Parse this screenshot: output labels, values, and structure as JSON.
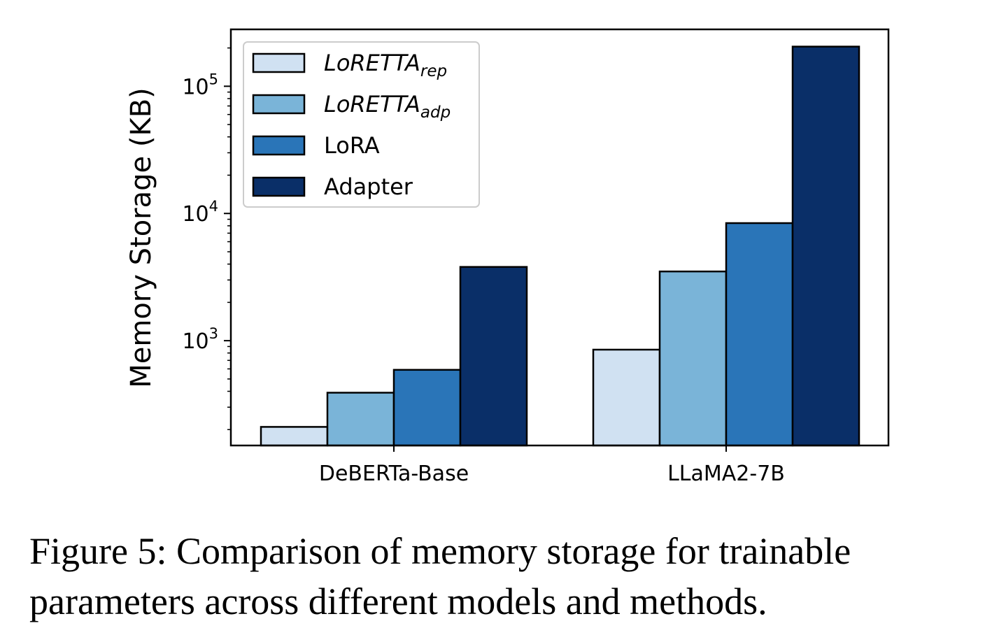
{
  "chart_data": {
    "type": "bar",
    "ylabel": "Memory Storage (KB)",
    "yscale": "log",
    "ylim": [
      150,
      280000
    ],
    "yticks": [
      {
        "value": 1000,
        "base": "10",
        "exp": "3"
      },
      {
        "value": 10000,
        "base": "10",
        "exp": "4"
      },
      {
        "value": 100000,
        "base": "10",
        "exp": "5"
      }
    ],
    "categories": [
      "DeBERTa-Base",
      "LLaMA2-7B"
    ],
    "series": [
      {
        "name": "LoRETTA",
        "sub": "rep",
        "color": "#d0e1f2",
        "values": [
          210,
          850
        ]
      },
      {
        "name": "LoRETTA",
        "sub": "adp",
        "color": "#7ab4d8",
        "values": [
          390,
          3500
        ]
      },
      {
        "name": "LoRA",
        "sub": "",
        "color": "#2a75b8",
        "values": [
          590,
          8400
        ]
      },
      {
        "name": "Adapter",
        "sub": "",
        "color": "#0a2f68",
        "values": [
          3800,
          205000
        ]
      }
    ],
    "legend_position": "top-left",
    "grid": false
  },
  "caption": {
    "label": "Figure 5:",
    "text": "Comparison of memory storage for trainable parameters across different models and methods."
  }
}
